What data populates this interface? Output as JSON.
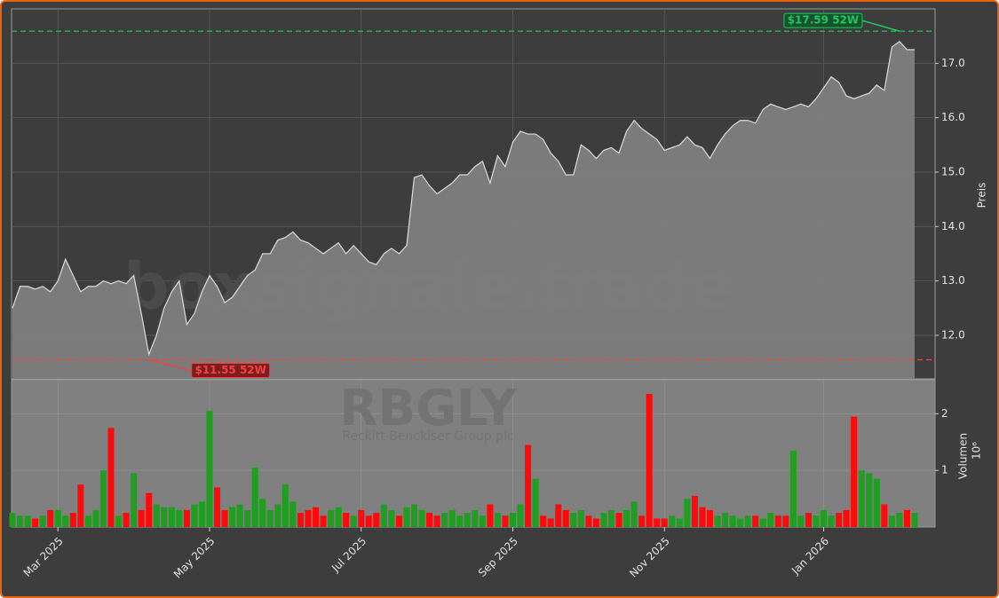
{
  "watermarks": {
    "site": "boxsignale.trade",
    "ticker": "RBGLY",
    "company": "Reckitt Benckiser Group plc"
  },
  "chart_data": [
    {
      "type": "area",
      "ylabel": "Preis",
      "line_color": "#dcdcdc",
      "fill_color": "#808080",
      "grid": true,
      "ylim": [
        11.2,
        18.0
      ],
      "yticks": [
        {
          "value": 12,
          "label": "12.0"
        },
        {
          "value": 13,
          "label": "13.0"
        },
        {
          "value": 14,
          "label": "14.0"
        },
        {
          "value": 15,
          "label": "15.0"
        },
        {
          "value": 16,
          "label": "16.0"
        },
        {
          "value": 17,
          "label": "17.0"
        }
      ],
      "values": [
        12.5,
        12.9,
        12.9,
        12.85,
        12.9,
        12.8,
        13.0,
        13.4,
        13.1,
        12.8,
        12.9,
        12.9,
        13.0,
        12.95,
        13.0,
        12.95,
        13.1,
        12.4,
        11.65,
        12.0,
        12.5,
        12.8,
        13.0,
        12.2,
        12.4,
        12.8,
        13.1,
        12.9,
        12.6,
        12.7,
        12.9,
        13.1,
        13.2,
        13.5,
        13.5,
        13.75,
        13.8,
        13.9,
        13.75,
        13.7,
        13.6,
        13.5,
        13.6,
        13.7,
        13.5,
        13.65,
        13.5,
        13.35,
        13.3,
        13.5,
        13.6,
        13.5,
        13.65,
        14.9,
        14.95,
        14.75,
        14.6,
        14.7,
        14.8,
        14.95,
        14.95,
        15.1,
        15.2,
        14.8,
        15.3,
        15.1,
        15.55,
        15.75,
        15.7,
        15.7,
        15.6,
        15.35,
        15.2,
        14.95,
        14.95,
        15.5,
        15.4,
        15.25,
        15.4,
        15.45,
        15.35,
        15.75,
        15.95,
        15.8,
        15.7,
        15.6,
        15.4,
        15.45,
        15.5,
        15.65,
        15.5,
        15.45,
        15.25,
        15.5,
        15.7,
        15.85,
        15.95,
        15.95,
        15.9,
        16.15,
        16.25,
        16.2,
        16.15,
        16.2,
        16.25,
        16.2,
        16.35,
        16.55,
        16.75,
        16.65,
        16.4,
        16.35,
        16.4,
        16.45,
        16.6,
        16.5,
        17.3,
        17.4,
        17.25,
        17.25
      ],
      "annotations": [
        {
          "value": 17.59,
          "label": "$17.59 52W",
          "color": "#22c55e",
          "box": "#14532d"
        },
        {
          "value": 11.55,
          "label": "$11.55 52W",
          "color": "#ef4444",
          "box": "#7f1d1d"
        }
      ]
    },
    {
      "type": "bar",
      "ylabel": "Volumen",
      "unit_label": "10⁶",
      "up_color": "#1f9e1f",
      "down_color": "#ff0a0a",
      "panel_color": "#808080",
      "grid": true,
      "ylim": [
        0,
        2.6
      ],
      "yticks": [
        1,
        2
      ],
      "categories": [
        null,
        null,
        null,
        null,
        null,
        null,
        "Mar 2025",
        null,
        null,
        null,
        null,
        null,
        null,
        null,
        null,
        null,
        null,
        null,
        null,
        null,
        null,
        null,
        null,
        null,
        null,
        null,
        "May 2025",
        null,
        null,
        null,
        null,
        null,
        null,
        null,
        null,
        null,
        null,
        null,
        null,
        null,
        null,
        null,
        null,
        null,
        null,
        null,
        "Jul 2025",
        null,
        null,
        null,
        null,
        null,
        null,
        null,
        null,
        null,
        null,
        null,
        null,
        null,
        null,
        null,
        null,
        null,
        null,
        null,
        "Sep 2025",
        null,
        null,
        null,
        null,
        null,
        null,
        null,
        null,
        null,
        null,
        null,
        null,
        null,
        null,
        null,
        null,
        null,
        null,
        null,
        "Nov 2025",
        null,
        null,
        null,
        null,
        null,
        null,
        null,
        null,
        null,
        null,
        null,
        null,
        null,
        null,
        null,
        null,
        null,
        null,
        null,
        null,
        "Jan 2026",
        null,
        null,
        null,
        null,
        null,
        null,
        null,
        null,
        null,
        null,
        null,
        null
      ],
      "values": [
        0.25,
        0.2,
        0.2,
        0.15,
        0.2,
        0.3,
        0.3,
        0.2,
        0.25,
        0.75,
        0.2,
        0.3,
        1.0,
        1.75,
        0.2,
        0.25,
        0.95,
        0.3,
        0.6,
        0.4,
        0.35,
        0.35,
        0.3,
        0.3,
        0.4,
        0.45,
        2.05,
        0.7,
        0.3,
        0.35,
        0.4,
        0.3,
        1.05,
        0.5,
        0.3,
        0.4,
        0.75,
        0.45,
        0.25,
        0.3,
        0.35,
        0.2,
        0.3,
        0.35,
        0.25,
        0.2,
        0.3,
        0.2,
        0.25,
        0.4,
        0.3,
        0.2,
        0.35,
        0.4,
        0.3,
        0.25,
        0.2,
        0.25,
        0.3,
        0.2,
        0.25,
        0.3,
        0.2,
        0.4,
        0.25,
        0.2,
        0.25,
        0.4,
        1.45,
        0.85,
        0.2,
        0.15,
        0.4,
        0.3,
        0.25,
        0.3,
        0.2,
        0.15,
        0.25,
        0.3,
        0.25,
        0.3,
        0.45,
        0.2,
        2.35,
        0.15,
        0.15,
        0.2,
        0.15,
        0.5,
        0.55,
        0.35,
        0.3,
        0.2,
        0.25,
        0.2,
        0.15,
        0.2,
        0.2,
        0.15,
        0.25,
        0.2,
        0.2,
        1.35,
        0.2,
        0.25,
        0.2,
        0.3,
        0.2,
        0.25,
        0.3,
        1.95,
        1.0,
        0.95,
        0.85,
        0.4,
        0.2,
        0.25,
        0.3,
        0.25
      ]
    }
  ]
}
